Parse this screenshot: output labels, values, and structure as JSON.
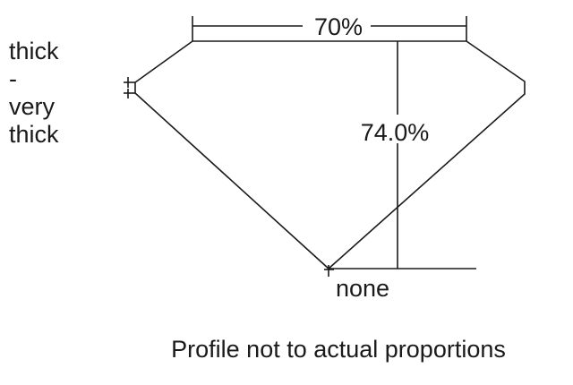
{
  "girdle": {
    "lines": [
      "thick",
      "-",
      "very",
      "thick"
    ]
  },
  "table_label": "70%",
  "depth_label": "74.0%",
  "culet_label": "none",
  "caption": "Profile not to actual proportions",
  "colors": {
    "line": "#1a1a1a",
    "background": "#ffffff"
  }
}
